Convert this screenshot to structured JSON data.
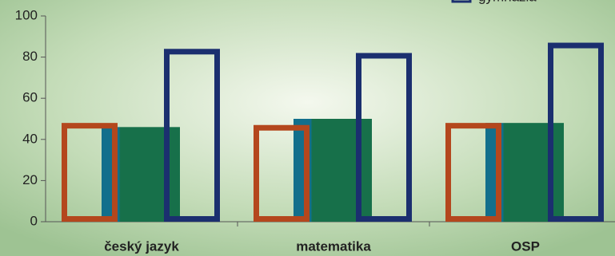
{
  "chart_data": {
    "type": "bar",
    "categories": [
      "český jazyk",
      "matematika",
      "OSP"
    ],
    "series": [
      {
        "color": "#b4471d",
        "outline": true,
        "values": [
          48,
          47,
          48
        ]
      },
      {
        "color": "#17704a",
        "outline": false,
        "values": [
          46,
          50,
          48
        ]
      },
      {
        "name": "gymnázia",
        "color": "#1b2f6f",
        "outline": true,
        "values": [
          84,
          82,
          87
        ]
      }
    ],
    "ylim": [
      0,
      100
    ],
    "yticks": [
      0,
      20,
      40,
      60,
      80,
      100
    ]
  }
}
